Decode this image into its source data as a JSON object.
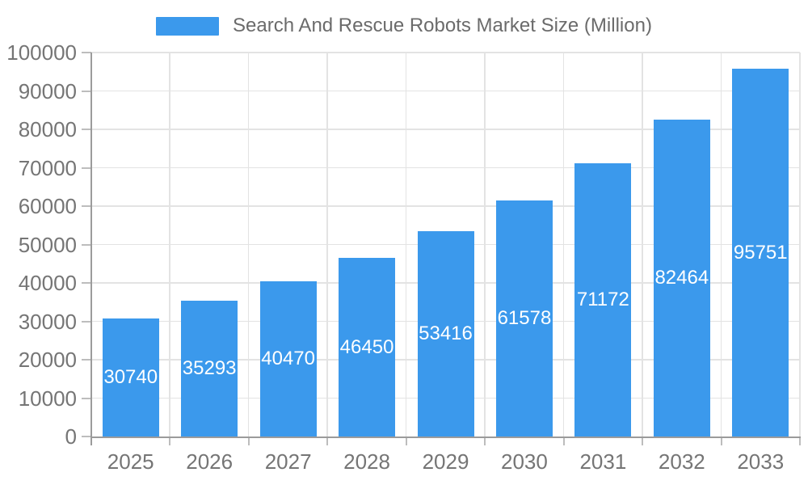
{
  "legend": {
    "items": [
      {
        "label": "Search And Rescue Robots Market Size (Million)",
        "swatch_color": "#3B99EC"
      }
    ],
    "position": "top-center"
  },
  "chart_data": {
    "type": "bar",
    "title": "Search And Rescue Robots Market Size (Million)",
    "categories": [
      "2025",
      "2026",
      "2027",
      "2028",
      "2029",
      "2030",
      "2031",
      "2032",
      "2033"
    ],
    "series": [
      {
        "name": "Search And Rescue Robots Market Size (Million)",
        "color": "#3B99EC",
        "values": [
          30740,
          35293,
          40470,
          46450,
          53416,
          61578,
          71172,
          82464,
          95751
        ]
      }
    ],
    "xlabel": "",
    "ylabel": "",
    "ylim": [
      0,
      100000
    ],
    "yticks": [
      0,
      10000,
      20000,
      30000,
      40000,
      50000,
      60000,
      70000,
      80000,
      90000,
      100000
    ],
    "grid": true,
    "legend_position": "top",
    "value_labels": {
      "visible": true,
      "position": "inside-center",
      "color": "#FFFFFF"
    }
  },
  "colors": {
    "bar": "#3B99EC",
    "axis_line": "#9B9B9B",
    "tick_mark": "#BDBDBD",
    "gridline": "#E3E3E3",
    "tick_label": "#757575",
    "legend_text": "#6B6B6B",
    "value_label": "#FFFFFF",
    "background": "#FFFFFF"
  }
}
